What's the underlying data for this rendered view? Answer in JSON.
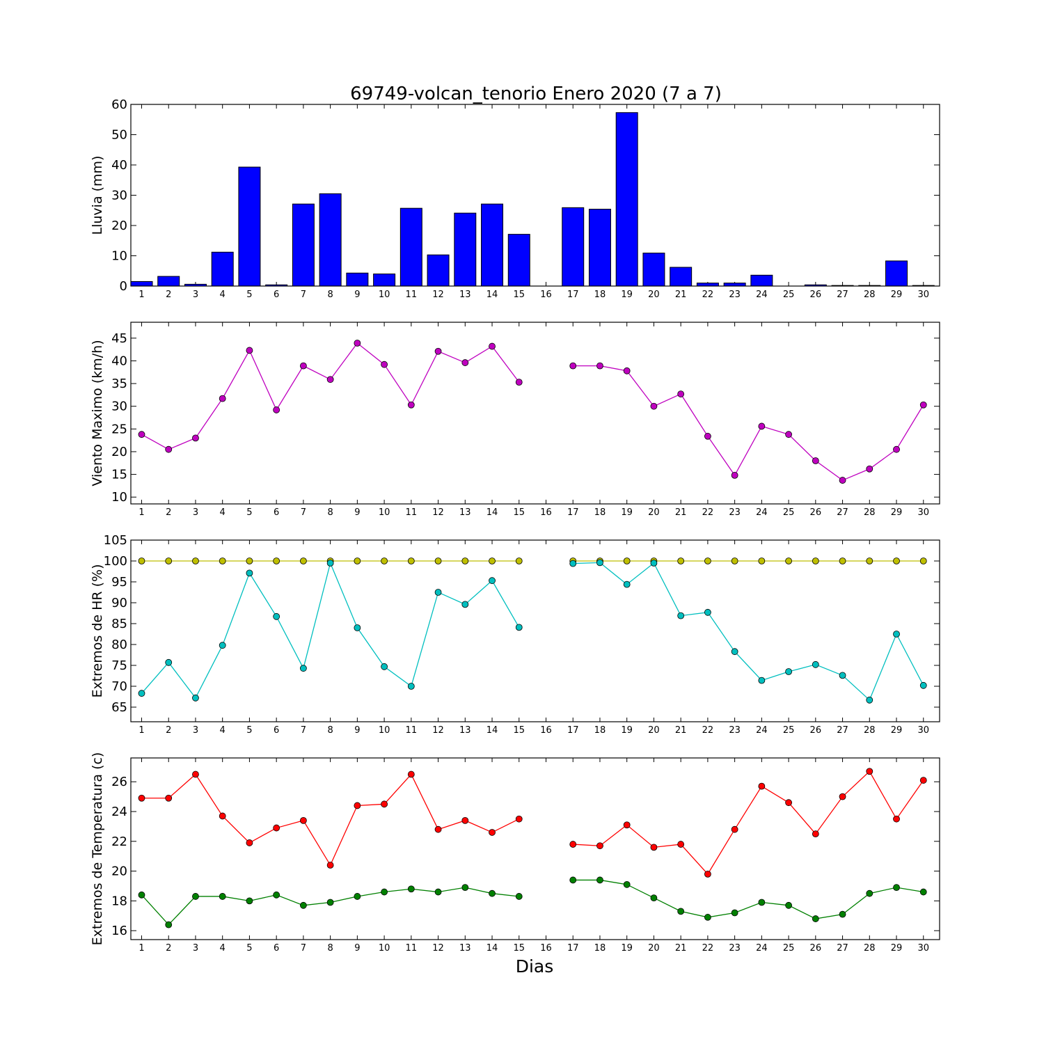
{
  "title": "69749-volcan_tenorio Enero 2020  (7 a 7)",
  "xlabel": "Dias",
  "colors": {
    "rain": "#0000ff",
    "wind": "#bf00bf",
    "hr_max": "#bfbf00",
    "hr_min": "#00bfbf",
    "temp_max": "#ff0000",
    "temp_min": "#008000"
  },
  "chart_data": [
    {
      "type": "bar",
      "ylabel": "Lluvia (mm)",
      "categories": [
        "1",
        "2",
        "3",
        "4",
        "5",
        "6",
        "7",
        "8",
        "9",
        "10",
        "11",
        "12",
        "13",
        "14",
        "15",
        "16",
        "17",
        "18",
        "19",
        "20",
        "21",
        "22",
        "23",
        "24",
        "25",
        "26",
        "27",
        "28",
        "29",
        "30"
      ],
      "x": [
        1,
        2,
        3,
        4,
        5,
        6,
        7,
        8,
        9,
        10,
        11,
        12,
        13,
        14,
        15,
        16,
        17,
        18,
        19,
        20,
        21,
        22,
        23,
        24,
        25,
        26,
        27,
        28,
        29,
        30
      ],
      "ylim": [
        0,
        60
      ],
      "yticks": [
        0,
        10,
        20,
        30,
        40,
        50,
        60
      ],
      "series": [
        {
          "values": [
            1.5,
            3.2,
            0.6,
            11.2,
            39.3,
            0.4,
            27.1,
            30.5,
            4.3,
            4.0,
            25.7,
            10.3,
            24.1,
            27.1,
            17.1,
            0,
            25.9,
            25.4,
            57.3,
            10.9,
            6.2,
            1.0,
            1.0,
            3.6,
            0,
            0.4,
            0.2,
            0.2,
            8.3,
            0.2
          ]
        }
      ]
    },
    {
      "type": "line",
      "ylabel": "Viento Maximo (km/h)",
      "categories": [
        "1",
        "2",
        "3",
        "4",
        "5",
        "6",
        "7",
        "8",
        "9",
        "10",
        "11",
        "12",
        "13",
        "14",
        "15",
        "16",
        "17",
        "18",
        "19",
        "20",
        "21",
        "22",
        "23",
        "24",
        "25",
        "26",
        "27",
        "28",
        "29",
        "30"
      ],
      "x": [
        1,
        2,
        3,
        4,
        5,
        6,
        7,
        8,
        9,
        10,
        11,
        12,
        13,
        14,
        15,
        16,
        17,
        18,
        19,
        20,
        21,
        22,
        23,
        24,
        25,
        26,
        27,
        28,
        29,
        30
      ],
      "ylim": [
        8.5,
        48.5
      ],
      "yticks": [
        10,
        15,
        20,
        25,
        30,
        35,
        40,
        45
      ],
      "series": [
        {
          "values": [
            23.8,
            20.5,
            23.0,
            31.7,
            42.3,
            29.2,
            38.9,
            35.9,
            43.9,
            39.2,
            30.3,
            42.1,
            39.6,
            43.2,
            35.3,
            null,
            38.9,
            38.9,
            37.8,
            30.0,
            32.7,
            23.4,
            14.8,
            25.6,
            23.8,
            18.0,
            13.7,
            16.2,
            20.5,
            30.3
          ]
        }
      ]
    },
    {
      "type": "line",
      "ylabel": "Extremos de HR (%)",
      "categories": [
        "1",
        "2",
        "3",
        "4",
        "5",
        "6",
        "7",
        "8",
        "9",
        "10",
        "11",
        "12",
        "13",
        "14",
        "15",
        "16",
        "17",
        "18",
        "19",
        "20",
        "21",
        "22",
        "23",
        "24",
        "25",
        "26",
        "27",
        "28",
        "29",
        "30"
      ],
      "x": [
        1,
        2,
        3,
        4,
        5,
        6,
        7,
        8,
        9,
        10,
        11,
        12,
        13,
        14,
        15,
        16,
        17,
        18,
        19,
        20,
        21,
        22,
        23,
        24,
        25,
        26,
        27,
        28,
        29,
        30
      ],
      "ylim": [
        61.5,
        105
      ],
      "yticks": [
        65,
        70,
        75,
        80,
        85,
        90,
        95,
        100,
        105
      ],
      "series": [
        {
          "values": [
            100,
            100,
            100,
            100,
            100,
            100,
            100,
            100,
            100,
            100,
            100,
            100,
            100,
            100,
            100,
            null,
            100,
            100,
            100,
            100,
            100,
            100,
            100,
            100,
            100,
            100,
            100,
            100,
            100,
            100
          ]
        },
        {
          "values": [
            68.3,
            75.7,
            67.2,
            79.8,
            97.1,
            86.7,
            74.3,
            99.5,
            84.0,
            74.7,
            70.0,
            92.5,
            89.6,
            95.3,
            84.1,
            null,
            99.4,
            99.6,
            94.4,
            99.5,
            86.9,
            87.7,
            78.3,
            71.4,
            73.5,
            75.2,
            72.6,
            66.7,
            82.5,
            70.2
          ]
        }
      ]
    },
    {
      "type": "line",
      "ylabel": "Extremos de Temperatura (c)",
      "categories": [
        "1",
        "2",
        "3",
        "4",
        "5",
        "6",
        "7",
        "8",
        "9",
        "10",
        "11",
        "12",
        "13",
        "14",
        "15",
        "16",
        "17",
        "18",
        "19",
        "20",
        "21",
        "22",
        "23",
        "24",
        "25",
        "26",
        "27",
        "28",
        "29",
        "30"
      ],
      "x": [
        1,
        2,
        3,
        4,
        5,
        6,
        7,
        8,
        9,
        10,
        11,
        12,
        13,
        14,
        15,
        16,
        17,
        18,
        19,
        20,
        21,
        22,
        23,
        24,
        25,
        26,
        27,
        28,
        29,
        30
      ],
      "ylim": [
        15.4,
        27.6
      ],
      "yticks": [
        16,
        18,
        20,
        22,
        24,
        26
      ],
      "series": [
        {
          "values": [
            24.9,
            24.9,
            26.5,
            23.7,
            21.9,
            22.9,
            23.4,
            20.4,
            24.4,
            24.5,
            26.5,
            22.8,
            23.4,
            22.6,
            23.5,
            null,
            21.8,
            21.7,
            23.1,
            21.6,
            21.8,
            19.8,
            22.8,
            25.7,
            24.6,
            22.5,
            25.0,
            26.7,
            23.5,
            26.1
          ]
        },
        {
          "values": [
            18.4,
            16.4,
            18.3,
            18.3,
            18.0,
            18.4,
            17.7,
            17.9,
            18.3,
            18.6,
            18.8,
            18.6,
            18.9,
            18.5,
            18.3,
            null,
            19.4,
            19.4,
            19.1,
            18.2,
            17.3,
            16.9,
            17.2,
            17.9,
            17.7,
            16.8,
            17.1,
            18.5,
            18.9,
            18.6
          ]
        }
      ]
    }
  ]
}
